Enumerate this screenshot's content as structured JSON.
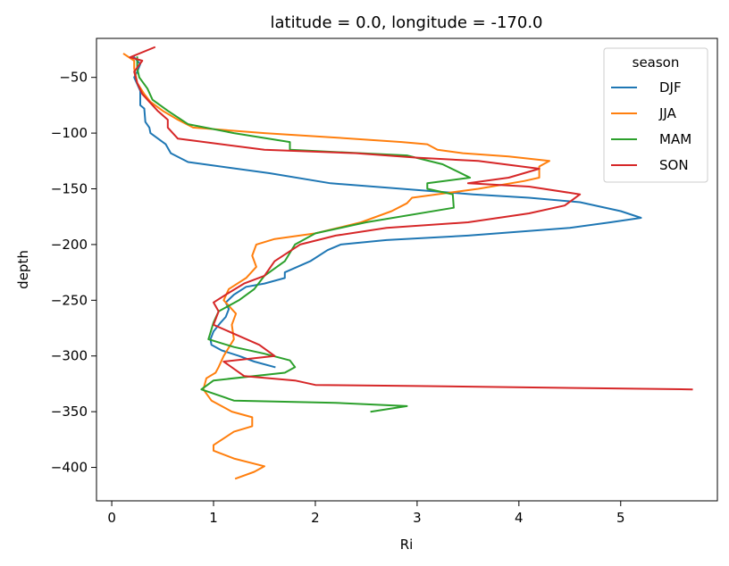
{
  "chart_data": {
    "type": "line",
    "title": "latitude = 0.0, longitude = -170.0",
    "xlabel": "Ri",
    "ylabel": "depth",
    "xlim": [
      -0.15,
      5.95
    ],
    "ylim": [
      -430,
      -15
    ],
    "x_ticks": [
      0,
      1,
      2,
      3,
      4,
      5
    ],
    "y_ticks": [
      -400,
      -350,
      -300,
      -250,
      -200,
      -150,
      -100,
      -50
    ],
    "grid": false,
    "legend": {
      "title": "season",
      "position": "top-right"
    },
    "series": [
      {
        "name": "DJF",
        "color": "#1f77b4",
        "points": [
          [
            0.22,
            -32
          ],
          [
            0.28,
            -38
          ],
          [
            0.25,
            -45
          ],
          [
            0.22,
            -50
          ],
          [
            0.28,
            -62
          ],
          [
            0.28,
            -75
          ],
          [
            0.32,
            -78
          ],
          [
            0.33,
            -90
          ],
          [
            0.37,
            -95
          ],
          [
            0.38,
            -100
          ],
          [
            0.53,
            -110
          ],
          [
            0.58,
            -118
          ],
          [
            0.75,
            -126
          ],
          [
            1.55,
            -136
          ],
          [
            2.15,
            -145
          ],
          [
            2.85,
            -150
          ],
          [
            3.55,
            -155
          ],
          [
            4.1,
            -158
          ],
          [
            4.6,
            -162
          ],
          [
            5.0,
            -170
          ],
          [
            5.2,
            -176
          ],
          [
            4.9,
            -180
          ],
          [
            4.5,
            -185
          ],
          [
            3.5,
            -192
          ],
          [
            2.7,
            -196
          ],
          [
            2.25,
            -200
          ],
          [
            2.12,
            -205
          ],
          [
            1.95,
            -215
          ],
          [
            1.7,
            -225
          ],
          [
            1.7,
            -230
          ],
          [
            1.5,
            -235
          ],
          [
            1.32,
            -238
          ],
          [
            1.2,
            -245
          ],
          [
            1.12,
            -252
          ],
          [
            1.15,
            -258
          ],
          [
            1.12,
            -265
          ],
          [
            1.07,
            -270
          ],
          [
            1.0,
            -278
          ],
          [
            0.97,
            -285
          ],
          [
            0.98,
            -290
          ],
          [
            1.08,
            -295
          ],
          [
            1.25,
            -300
          ],
          [
            1.4,
            -305
          ],
          [
            1.6,
            -310
          ]
        ]
      },
      {
        "name": "JJA",
        "color": "#ff7f0e",
        "points": [
          [
            0.12,
            -29
          ],
          [
            0.22,
            -35
          ],
          [
            0.22,
            -42
          ],
          [
            0.25,
            -55
          ],
          [
            0.32,
            -65
          ],
          [
            0.38,
            -72
          ],
          [
            0.5,
            -80
          ],
          [
            0.65,
            -88
          ],
          [
            0.8,
            -95
          ],
          [
            1.5,
            -100
          ],
          [
            2.2,
            -104
          ],
          [
            2.85,
            -108
          ],
          [
            3.1,
            -110
          ],
          [
            3.2,
            -115
          ],
          [
            3.45,
            -118
          ],
          [
            3.9,
            -121
          ],
          [
            4.3,
            -125
          ],
          [
            4.2,
            -130
          ],
          [
            4.2,
            -140
          ],
          [
            4.05,
            -143
          ],
          [
            3.6,
            -150
          ],
          [
            2.95,
            -158
          ],
          [
            2.9,
            -163
          ],
          [
            2.75,
            -170
          ],
          [
            2.45,
            -180
          ],
          [
            2.0,
            -190
          ],
          [
            1.6,
            -195
          ],
          [
            1.42,
            -200
          ],
          [
            1.38,
            -210
          ],
          [
            1.42,
            -220
          ],
          [
            1.32,
            -230
          ],
          [
            1.15,
            -240
          ],
          [
            1.1,
            -250
          ],
          [
            1.22,
            -262
          ],
          [
            1.18,
            -272
          ],
          [
            1.2,
            -285
          ],
          [
            1.1,
            -300
          ],
          [
            1.05,
            -310
          ],
          [
            1.02,
            -315
          ],
          [
            0.93,
            -320
          ],
          [
            0.9,
            -330
          ],
          [
            0.98,
            -340
          ],
          [
            1.18,
            -350
          ],
          [
            1.38,
            -355
          ],
          [
            1.38,
            -363
          ],
          [
            1.2,
            -368
          ],
          [
            1.0,
            -380
          ],
          [
            1.0,
            -385
          ],
          [
            1.2,
            -392
          ],
          [
            1.5,
            -399
          ],
          [
            1.4,
            -404
          ],
          [
            1.22,
            -410
          ]
        ]
      },
      {
        "name": "MAM",
        "color": "#2ca02c",
        "points": [
          [
            0.25,
            -32
          ],
          [
            0.25,
            -42
          ],
          [
            0.27,
            -50
          ],
          [
            0.35,
            -60
          ],
          [
            0.4,
            -70
          ],
          [
            0.55,
            -80
          ],
          [
            0.75,
            -92
          ],
          [
            1.2,
            -100
          ],
          [
            1.75,
            -108
          ],
          [
            1.75,
            -115
          ],
          [
            2.9,
            -120
          ],
          [
            3.25,
            -128
          ],
          [
            3.52,
            -140
          ],
          [
            3.1,
            -145
          ],
          [
            3.1,
            -150
          ],
          [
            3.35,
            -155
          ],
          [
            3.36,
            -167
          ],
          [
            2.5,
            -180
          ],
          [
            2.0,
            -190
          ],
          [
            1.8,
            -200
          ],
          [
            1.7,
            -215
          ],
          [
            1.5,
            -228
          ],
          [
            1.4,
            -240
          ],
          [
            1.25,
            -250
          ],
          [
            1.05,
            -260
          ],
          [
            1.0,
            -270
          ],
          [
            0.95,
            -285
          ],
          [
            1.2,
            -292
          ],
          [
            1.5,
            -298
          ],
          [
            1.75,
            -304
          ],
          [
            1.8,
            -310
          ],
          [
            1.7,
            -315
          ],
          [
            1.0,
            -322
          ],
          [
            0.88,
            -330
          ],
          [
            1.2,
            -340
          ],
          [
            2.2,
            -342
          ],
          [
            2.9,
            -345
          ],
          [
            2.55,
            -350
          ]
        ]
      },
      {
        "name": "SON",
        "color": "#d62728",
        "points": [
          [
            0.42,
            -23
          ],
          [
            0.18,
            -32
          ],
          [
            0.3,
            -35
          ],
          [
            0.22,
            -45
          ],
          [
            0.25,
            -55
          ],
          [
            0.3,
            -65
          ],
          [
            0.45,
            -80
          ],
          [
            0.55,
            -88
          ],
          [
            0.55,
            -95
          ],
          [
            0.65,
            -105
          ],
          [
            1.5,
            -115
          ],
          [
            2.4,
            -118
          ],
          [
            3.0,
            -122
          ],
          [
            3.6,
            -125
          ],
          [
            4.2,
            -132
          ],
          [
            3.9,
            -140
          ],
          [
            3.5,
            -145
          ],
          [
            4.1,
            -148
          ],
          [
            4.6,
            -155
          ],
          [
            4.45,
            -165
          ],
          [
            4.1,
            -172
          ],
          [
            3.5,
            -180
          ],
          [
            2.7,
            -185
          ],
          [
            2.2,
            -192
          ],
          [
            1.85,
            -200
          ],
          [
            1.6,
            -215
          ],
          [
            1.5,
            -228
          ],
          [
            1.3,
            -235
          ],
          [
            1.12,
            -245
          ],
          [
            1.0,
            -252
          ],
          [
            1.05,
            -260
          ],
          [
            1.0,
            -272
          ],
          [
            1.2,
            -280
          ],
          [
            1.45,
            -290
          ],
          [
            1.6,
            -300
          ],
          [
            1.1,
            -305
          ],
          [
            1.3,
            -318
          ],
          [
            1.8,
            -322
          ],
          [
            2.0,
            -326
          ],
          [
            3.0,
            -327
          ],
          [
            5.7,
            -330
          ]
        ]
      }
    ]
  }
}
